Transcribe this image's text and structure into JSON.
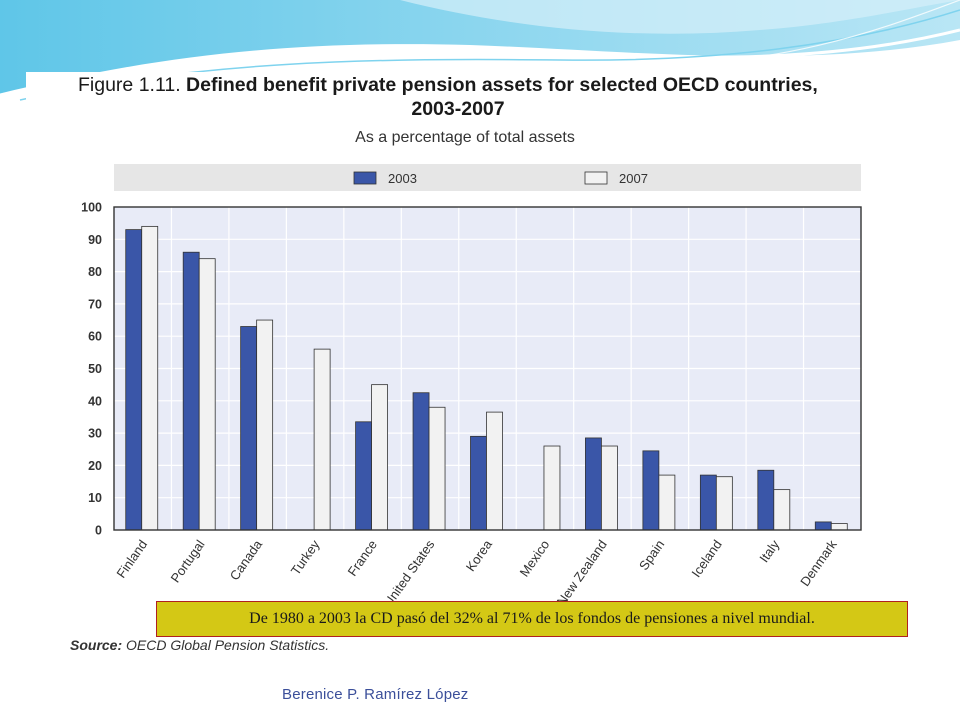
{
  "figure": {
    "number": "Figure 1.11.",
    "title": "Defined benefit private pension assets for selected OECD countries,",
    "title_line2": "2003-2007",
    "subtitle": "As a percentage of total assets"
  },
  "chart_data": {
    "type": "bar",
    "categories": [
      "Finland",
      "Portugal",
      "Canada",
      "Turkey",
      "France",
      "United States",
      "Korea",
      "Mexico",
      "New Zealand",
      "Spain",
      "Iceland",
      "Italy",
      "Denmark"
    ],
    "series": [
      {
        "name": "2003",
        "values": [
          93,
          86,
          63,
          null,
          33.5,
          42.5,
          29,
          null,
          28.5,
          24.5,
          17,
          18.5,
          2.5
        ],
        "color": "#3a56a8"
      },
      {
        "name": "2007",
        "values": [
          94,
          84,
          65,
          56,
          45,
          38,
          36.5,
          26,
          26,
          17,
          16.5,
          12.5,
          2
        ],
        "color": "#f2f2f2"
      }
    ],
    "ylim": [
      0,
      100
    ],
    "yticks": [
      0,
      10,
      20,
      30,
      40,
      50,
      60,
      70,
      80,
      90,
      100
    ],
    "grid": true,
    "legend_position": "top",
    "plot_background": "#e8ebf7"
  },
  "note": "De 1980 a 2003 la CD pasó del 32%  al 71% de los fondos de pensiones a nivel mundial.",
  "source": {
    "label": "Source:",
    "text": "OECD Global Pension Statistics."
  },
  "footer": {
    "author": "Berenice P. Ramírez López"
  }
}
